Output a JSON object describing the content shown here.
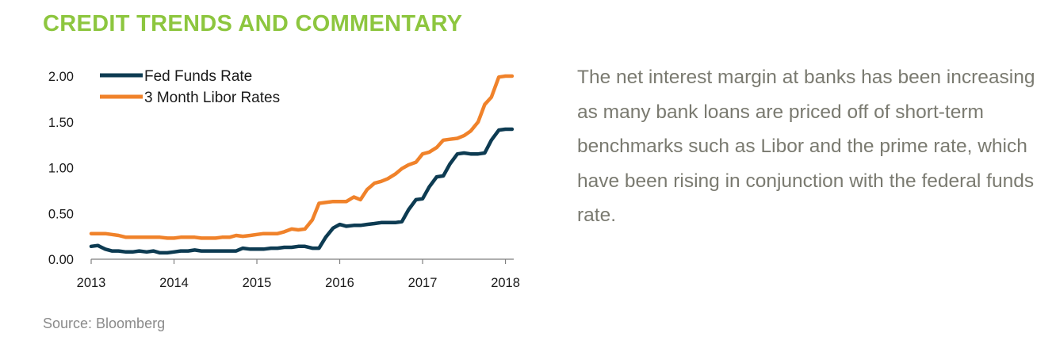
{
  "header": {
    "title": "CREDIT TRENDS AND COMMENTARY"
  },
  "commentary": {
    "text": "The net interest margin at banks has been increasing as many bank loans are priced off of short-term benchmarks such as Libor and the prime rate, which have been rising in conjunction with the federal funds rate."
  },
  "footer": {
    "source": "Source: Bloomberg"
  },
  "colors": {
    "title": "#8dc63f",
    "fed_funds": "#0d3b52",
    "libor": "#f0822a",
    "commentary_text": "#7a7a70"
  },
  "chart_data": {
    "type": "line",
    "title": "",
    "xlabel": "",
    "ylabel": "",
    "xlim": [
      2013,
      2018.1
    ],
    "ylim": [
      0,
      2.0
    ],
    "grid": false,
    "legend_position": "top-left",
    "x_ticks": [
      2013,
      2014,
      2015,
      2016,
      2017,
      2018
    ],
    "x_tick_labels": [
      "2013",
      "2014",
      "2015",
      "2016",
      "2017",
      "2018"
    ],
    "y_ticks": [
      0,
      0.5,
      1.0,
      1.5,
      2.0
    ],
    "y_tick_labels": [
      "0.00",
      "0.50",
      "1.00",
      "1.50",
      "2.00"
    ],
    "series": [
      {
        "name": "Fed Funds Rate",
        "color": "#0d3b52",
        "x": [
          2013.0,
          2013.08,
          2013.17,
          2013.25,
          2013.33,
          2013.42,
          2013.5,
          2013.58,
          2013.67,
          2013.75,
          2013.83,
          2013.92,
          2014.0,
          2014.08,
          2014.17,
          2014.25,
          2014.33,
          2014.42,
          2014.5,
          2014.58,
          2014.67,
          2014.75,
          2014.83,
          2014.92,
          2015.0,
          2015.08,
          2015.17,
          2015.25,
          2015.33,
          2015.42,
          2015.5,
          2015.58,
          2015.67,
          2015.75,
          2015.83,
          2015.92,
          2016.0,
          2016.08,
          2016.17,
          2016.25,
          2016.33,
          2016.42,
          2016.5,
          2016.58,
          2016.67,
          2016.75,
          2016.83,
          2016.92,
          2017.0,
          2017.08,
          2017.17,
          2017.25,
          2017.33,
          2017.42,
          2017.5,
          2017.58,
          2017.67,
          2017.75,
          2017.83,
          2017.92,
          2018.0,
          2018.08
        ],
        "y": [
          0.14,
          0.15,
          0.11,
          0.09,
          0.09,
          0.08,
          0.08,
          0.09,
          0.08,
          0.09,
          0.07,
          0.07,
          0.08,
          0.09,
          0.09,
          0.1,
          0.09,
          0.09,
          0.09,
          0.09,
          0.09,
          0.09,
          0.12,
          0.11,
          0.11,
          0.11,
          0.12,
          0.12,
          0.13,
          0.13,
          0.14,
          0.14,
          0.12,
          0.12,
          0.24,
          0.34,
          0.38,
          0.36,
          0.37,
          0.37,
          0.38,
          0.39,
          0.4,
          0.4,
          0.4,
          0.41,
          0.54,
          0.65,
          0.66,
          0.79,
          0.9,
          0.91,
          1.04,
          1.15,
          1.16,
          1.15,
          1.15,
          1.16,
          1.3,
          1.41,
          1.42,
          1.42
        ]
      },
      {
        "name": "3 Month Libor Rates",
        "color": "#f0822a",
        "x": [
          2013.0,
          2013.08,
          2013.17,
          2013.25,
          2013.33,
          2013.42,
          2013.5,
          2013.58,
          2013.67,
          2013.75,
          2013.83,
          2013.92,
          2014.0,
          2014.08,
          2014.17,
          2014.25,
          2014.33,
          2014.42,
          2014.5,
          2014.58,
          2014.67,
          2014.75,
          2014.83,
          2014.92,
          2015.0,
          2015.08,
          2015.17,
          2015.25,
          2015.33,
          2015.42,
          2015.5,
          2015.58,
          2015.67,
          2015.75,
          2015.83,
          2015.92,
          2016.0,
          2016.08,
          2016.17,
          2016.25,
          2016.33,
          2016.42,
          2016.5,
          2016.58,
          2016.67,
          2016.75,
          2016.83,
          2016.92,
          2017.0,
          2017.08,
          2017.17,
          2017.25,
          2017.33,
          2017.42,
          2017.5,
          2017.58,
          2017.67,
          2017.75,
          2017.83,
          2017.92,
          2018.0,
          2018.08
        ],
        "y": [
          0.28,
          0.28,
          0.28,
          0.27,
          0.26,
          0.24,
          0.24,
          0.24,
          0.24,
          0.24,
          0.24,
          0.23,
          0.23,
          0.24,
          0.24,
          0.24,
          0.23,
          0.23,
          0.23,
          0.24,
          0.24,
          0.26,
          0.25,
          0.26,
          0.27,
          0.28,
          0.28,
          0.28,
          0.3,
          0.33,
          0.32,
          0.33,
          0.43,
          0.61,
          0.62,
          0.63,
          0.63,
          0.63,
          0.68,
          0.65,
          0.76,
          0.83,
          0.85,
          0.88,
          0.93,
          0.99,
          1.03,
          1.06,
          1.15,
          1.17,
          1.22,
          1.3,
          1.31,
          1.32,
          1.35,
          1.4,
          1.5,
          1.69,
          1.77,
          1.99,
          2.0,
          2.0
        ]
      }
    ]
  }
}
